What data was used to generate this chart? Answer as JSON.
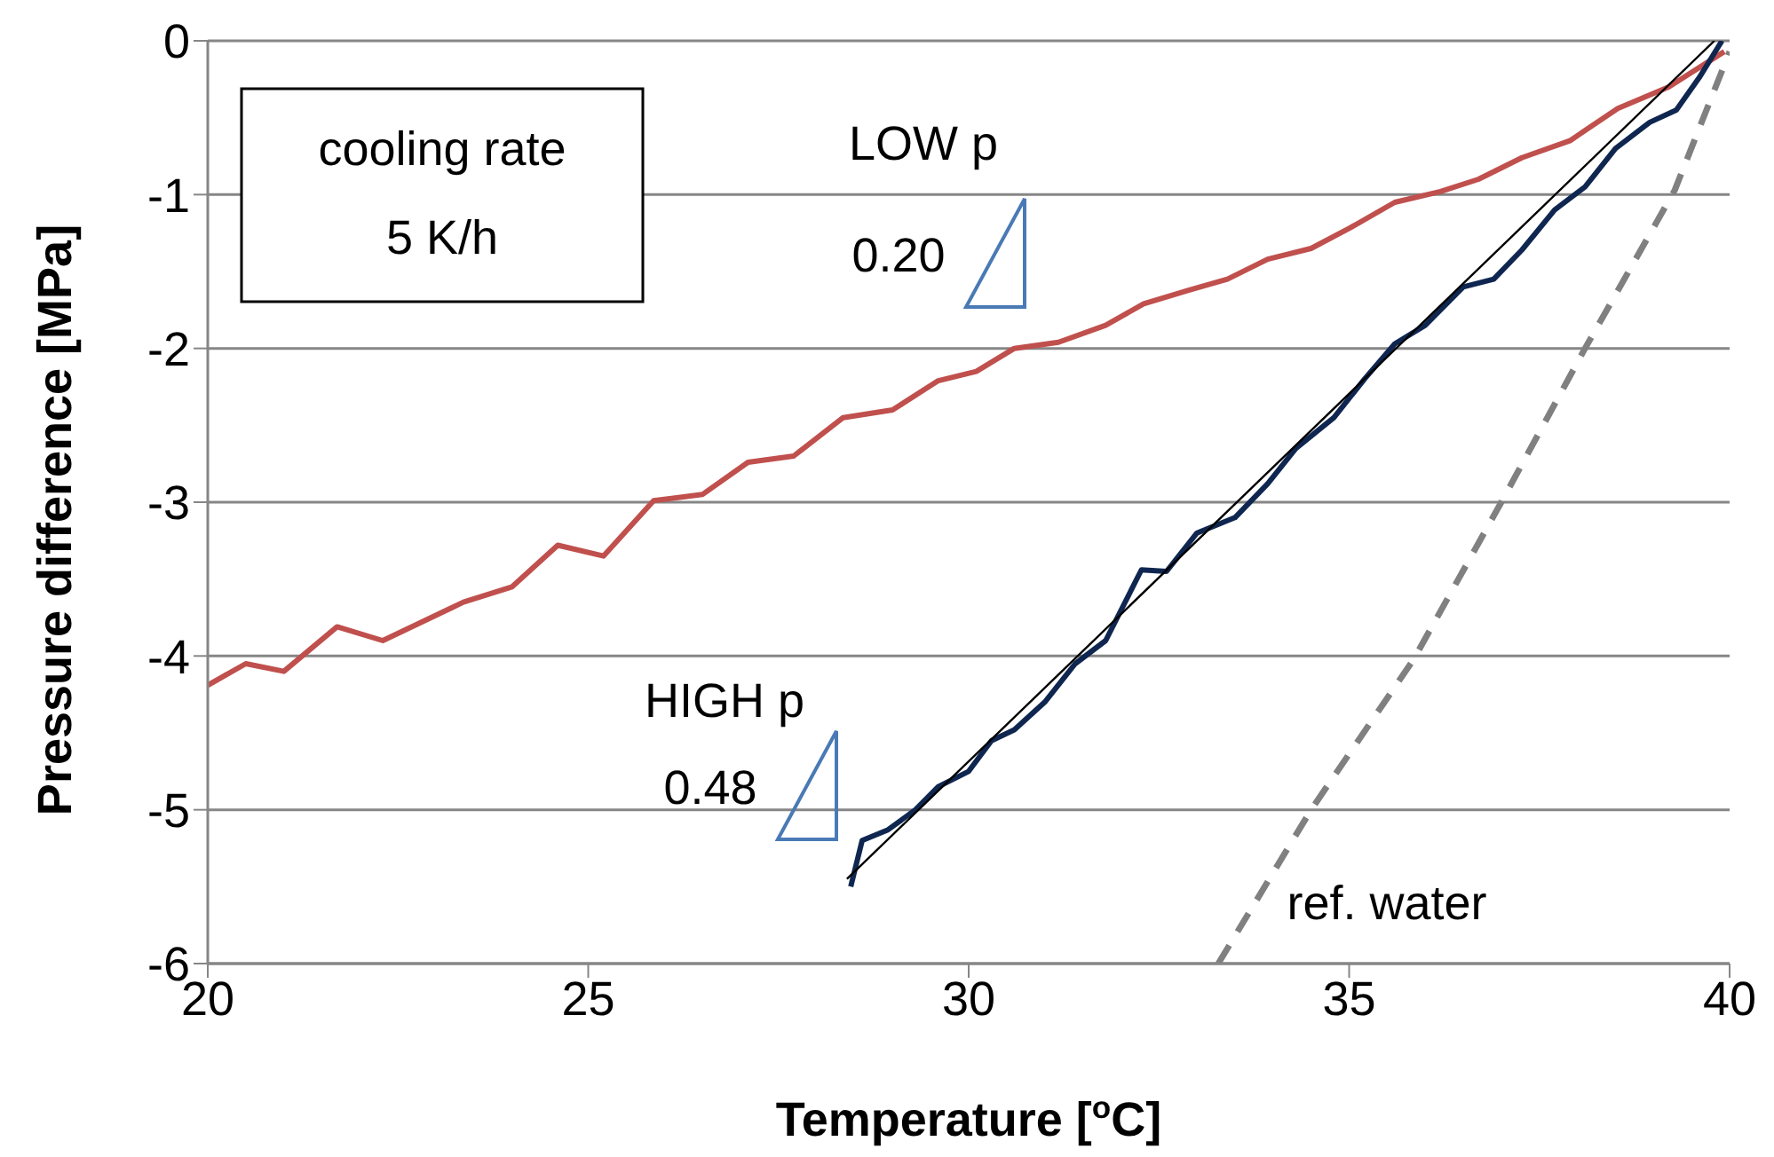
{
  "chart_data": {
    "type": "line",
    "xlabel": "Temperature [$^{o}$C]",
    "ylabel": "Pressure difference [MPa]",
    "xlim": [
      20,
      40
    ],
    "xticks": [
      20,
      25,
      30,
      35,
      40
    ],
    "ylim": [
      -6,
      0
    ],
    "yticks": [
      -6,
      -5,
      -4,
      -3,
      -2,
      -1,
      0
    ],
    "grid": "y",
    "legend": false,
    "marker": "none",
    "line_style": "solid",
    "series": [
      {
        "color": "#c0504d",
        "x": [
          20,
          20.5,
          21,
          21.7,
          22.3,
          23.36,
          24,
          24.6,
          25.2,
          25.86,
          26.5,
          27.1,
          27.7,
          28.35,
          29,
          29.6,
          30.1,
          30.6,
          31.18,
          31.8,
          32.3,
          32.9,
          33.4,
          33.93,
          34.5,
          35,
          35.6,
          36.2,
          36.7,
          37.27,
          37.9,
          38.53,
          39.2,
          39.93
        ],
        "values": [
          -4.19,
          -4.05,
          -4.1,
          -3.81,
          -3.9,
          -3.65,
          -3.55,
          -3.28,
          -3.35,
          -2.99,
          -2.95,
          -2.74,
          -2.7,
          -2.45,
          -2.4,
          -2.21,
          -2.15,
          -2.0,
          -1.96,
          -1.85,
          -1.71,
          -1.62,
          -1.55,
          -1.42,
          -1.35,
          -1.22,
          -1.05,
          -0.98,
          -0.9,
          -0.76,
          -0.65,
          -0.44,
          -0.3,
          -0.07
        ]
      },
      {
        "color": "#0f2750",
        "x": [
          28.45,
          28.6,
          28.94,
          29.3,
          29.6,
          30.0,
          30.3,
          30.6,
          31.0,
          31.4,
          31.8,
          32.27,
          32.6,
          33.0,
          33.5,
          33.93,
          34.3,
          34.8,
          35.2,
          35.6,
          36.0,
          36.5,
          36.9,
          37.27,
          37.7,
          38.1,
          38.5,
          38.95,
          39.3,
          39.6,
          39.9
        ],
        "values": [
          -5.5,
          -5.2,
          -5.13,
          -5.0,
          -4.85,
          -4.75,
          -4.55,
          -4.48,
          -4.3,
          -4.05,
          -3.9,
          -3.44,
          -3.45,
          -3.2,
          -3.1,
          -2.88,
          -2.65,
          -2.45,
          -2.2,
          -1.97,
          -1.85,
          -1.6,
          -1.55,
          -1.36,
          -1.1,
          -0.95,
          -0.7,
          -0.53,
          -0.45,
          -0.24,
          0
        ]
      },
      {
        "color": "#000000",
        "x": [
          28.4,
          39.8
        ],
        "values": [
          -5.45,
          0
        ]
      },
      {
        "color": "#808080",
        "line_style": "dashed",
        "x": [
          33.28,
          34.5,
          35.85,
          37,
          38.1,
          39.28,
          40
        ],
        "values": [
          -6,
          -5.0,
          -4.02,
          -3.0,
          -2.0,
          -0.97,
          -0.07
        ]
      }
    ],
    "annotations": [
      "cooling rate",
      "5 K/h",
      "LOW p",
      "0.20",
      "HIGH p",
      "0.48",
      "ref. water"
    ]
  }
}
